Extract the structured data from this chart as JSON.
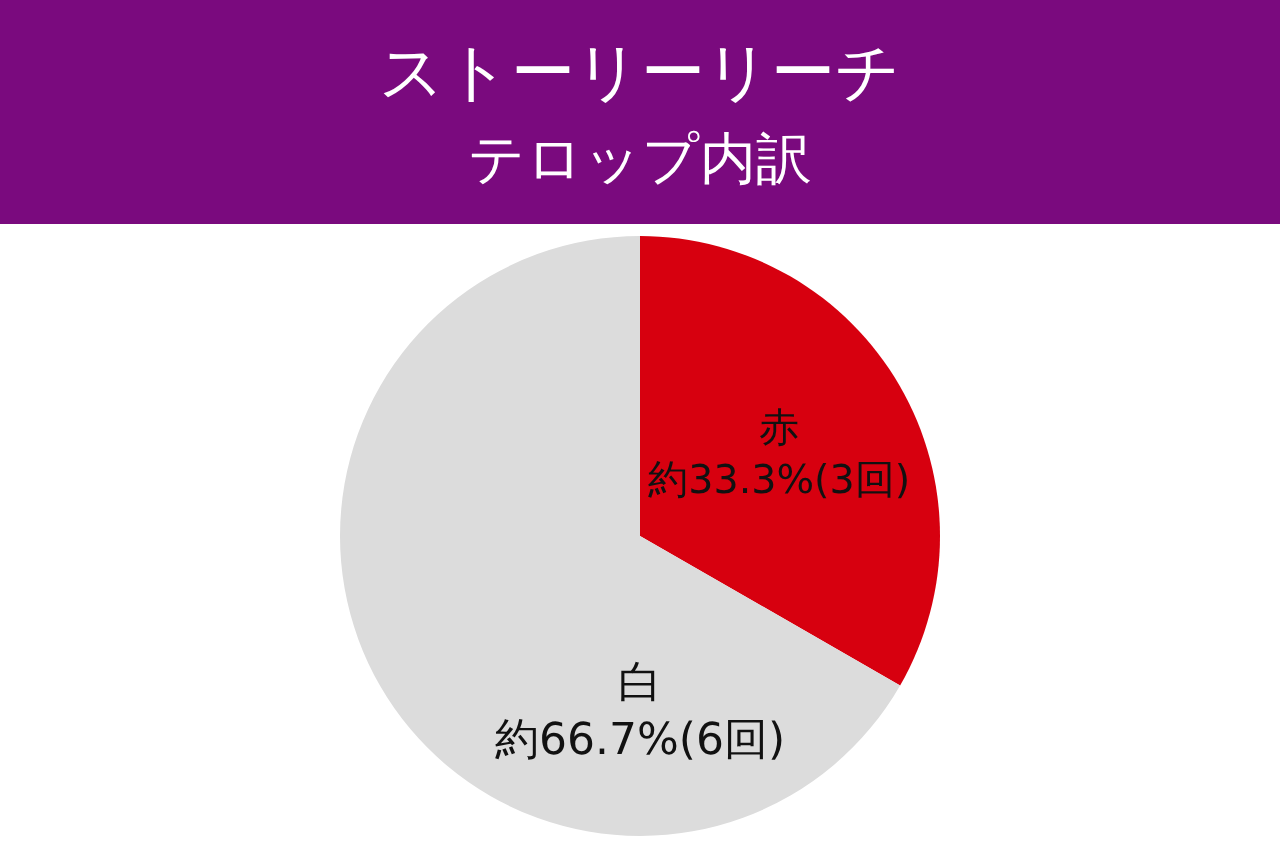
{
  "chart_data": {
    "type": "pie",
    "title": "ストーリーリーチ",
    "subtitle": "テロップ内訳",
    "categories": [
      "赤",
      "白"
    ],
    "values": [
      33.3,
      66.7
    ],
    "colors": [
      "#d7000f",
      "#dcdcdc"
    ],
    "value_labels": [
      "約33.3%(3回)",
      "約66.7%(6回)"
    ],
    "legend": false
  }
}
